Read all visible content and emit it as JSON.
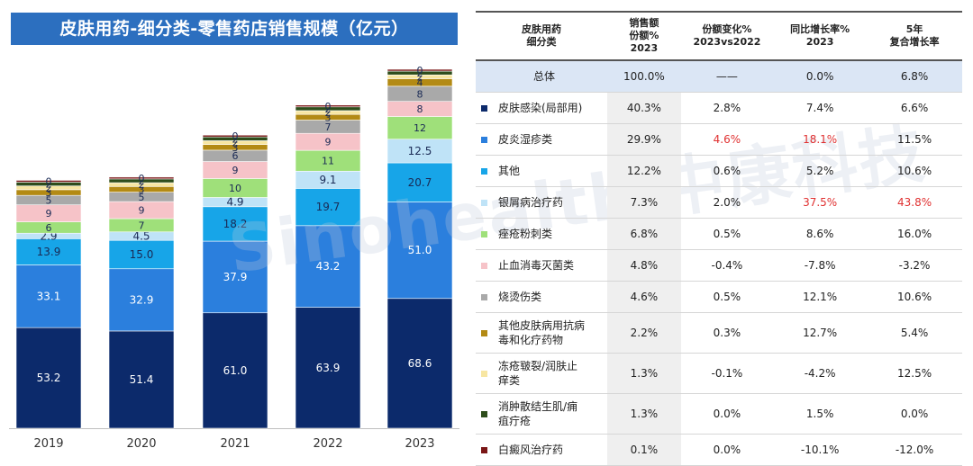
{
  "chart_data": {
    "type": "bar",
    "stacked": true,
    "title": "皮肤用药-细分类-零售药店销售规模（亿元）",
    "categories": [
      "2019",
      "2020",
      "2021",
      "2022",
      "2023"
    ],
    "series": [
      {
        "name": "皮肤感染(局部用)",
        "color": "#0c2a6b",
        "values": [
          53.2,
          51.4,
          61.0,
          63.9,
          68.6
        ],
        "text_color": "#ffffff"
      },
      {
        "name": "皮炎湿疹类",
        "color": "#2b7fdd",
        "values": [
          33.1,
          32.9,
          37.9,
          43.2,
          51.0
        ],
        "text_color": "#ffffff"
      },
      {
        "name": "其他",
        "color": "#17a5e8",
        "values": [
          13.9,
          15.0,
          18.2,
          19.7,
          20.7
        ],
        "text_color": "#1a2a55"
      },
      {
        "name": "银屑病治疗药",
        "color": "#bfe3f7",
        "values": [
          2.9,
          4.5,
          4.9,
          9.1,
          12.5
        ],
        "text_color": "#1a2a55"
      },
      {
        "name": "痤疮粉刺类",
        "color": "#9fe07a",
        "values": [
          6,
          7,
          10,
          11,
          12
        ],
        "text_color": "#1a2a55"
      },
      {
        "name": "止血消毒灭菌类",
        "color": "#f6c3c8",
        "values": [
          9,
          9,
          9,
          9,
          8
        ],
        "text_color": "#1a2a55"
      },
      {
        "name": "烧烫伤类",
        "color": "#a9a9a9",
        "values": [
          5,
          5,
          6,
          7,
          8
        ],
        "text_color": "#1a2a55"
      },
      {
        "name": "其他皮肤病用抗病毒和化疗药物",
        "color": "#b38a14",
        "values": [
          3,
          3,
          3,
          3,
          4
        ],
        "text_color": "#1a2a55"
      },
      {
        "name": "冻疮皲裂/润肤止痒类",
        "color": "#f7e6a2",
        "values": [
          2,
          2,
          2,
          2,
          2
        ],
        "text_color": "#1a2a55"
      },
      {
        "name": "消肿散结生肌/痈疽疔疮",
        "color": "#2e4d1b",
        "values": [
          2,
          2,
          2,
          2,
          2
        ],
        "text_color": "#1a2a55"
      },
      {
        "name": "白癜风治疗药",
        "color": "#7a1616",
        "values": [
          0.4,
          0.4,
          0.4,
          0.4,
          0.4
        ],
        "text_color": "#1a2a55"
      }
    ],
    "segment_labels": [
      [
        "53.2",
        "33.1",
        "13.9",
        "2.9",
        "6",
        "9",
        "5",
        "3",
        "2",
        "2",
        "0"
      ],
      [
        "51.4",
        "32.9",
        "15.0",
        "4.5",
        "7",
        "9",
        "5",
        "3",
        "2",
        "2",
        "0"
      ],
      [
        "61.0",
        "37.9",
        "18.2",
        "4.9",
        "10",
        "9",
        "6",
        "3",
        "2",
        "2",
        "0"
      ],
      [
        "63.9",
        "43.2",
        "19.7",
        "9.1",
        "11",
        "9",
        "7",
        "3",
        "2",
        "2",
        "0"
      ],
      [
        "68.6",
        "51.0",
        "20.7",
        "12.5",
        "12",
        "8",
        "8",
        "4",
        "2",
        "2",
        "0"
      ]
    ],
    "ylim": [
      0,
      195
    ],
    "xlabel": "",
    "ylabel": "",
    "grid": false
  },
  "watermark": "Sinohealth 中康科技",
  "table": {
    "headers": [
      "皮肤用药\n细分类",
      "销售额\n份额%\n2023",
      "份额变化%\n2023vs2022",
      "同比增长率%\n2023",
      "5年\n复合增长率"
    ],
    "rows": [
      {
        "cat": "总体",
        "share": "100.0%",
        "change": "——",
        "yoy": "0.0%",
        "cagr": "6.8%",
        "total": true
      },
      {
        "cat": "皮肤感染(局部用)",
        "color": "#0c2a6b",
        "share": "40.3%",
        "change": "2.8%",
        "yoy": "7.4%",
        "cagr": "6.6%"
      },
      {
        "cat": "皮炎湿疹类",
        "color": "#2b7fdd",
        "share": "29.9%",
        "change": "4.6%",
        "yoy": "18.1%",
        "cagr": "11.5%",
        "red": [
          "change",
          "yoy"
        ]
      },
      {
        "cat": "其他",
        "color": "#17a5e8",
        "share": "12.2%",
        "change": "0.6%",
        "yoy": "5.2%",
        "cagr": "10.6%"
      },
      {
        "cat": "银屑病治疗药",
        "color": "#bfe3f7",
        "share": "7.3%",
        "change": "2.0%",
        "yoy": "37.5%",
        "cagr": "43.8%",
        "red": [
          "yoy",
          "cagr"
        ]
      },
      {
        "cat": "痤疮粉刺类",
        "color": "#9fe07a",
        "share": "6.8%",
        "change": "0.5%",
        "yoy": "8.6%",
        "cagr": "16.0%"
      },
      {
        "cat": "止血消毒灭菌类",
        "color": "#f6c3c8",
        "share": "4.8%",
        "change": "-0.4%",
        "yoy": "-7.8%",
        "cagr": "-3.2%"
      },
      {
        "cat": "烧烫伤类",
        "color": "#a9a9a9",
        "share": "4.6%",
        "change": "0.5%",
        "yoy": "12.1%",
        "cagr": "10.6%"
      },
      {
        "cat": "其他皮肤病用抗病毒和化疗药物",
        "cat_lines": [
          "其他皮肤病用抗病",
          "毒和化疗药物"
        ],
        "color": "#b38a14",
        "share": "2.2%",
        "change": "0.3%",
        "yoy": "12.7%",
        "cagr": "5.4%"
      },
      {
        "cat": "冻疮皲裂/润肤止痒类",
        "cat_lines": [
          "冻疮皲裂/润肤止",
          "痒类"
        ],
        "color": "#f7e6a2",
        "share": "1.3%",
        "change": "-0.1%",
        "yoy": "-4.2%",
        "cagr": "12.5%"
      },
      {
        "cat": "消肿散结生肌/痈疽疔疮",
        "cat_lines": [
          "消肿散结生肌/痈",
          "疽疔疮"
        ],
        "color": "#2e4d1b",
        "share": "1.3%",
        "change": "0.0%",
        "yoy": "1.5%",
        "cagr": "0.0%"
      },
      {
        "cat": "白癜风治疗药",
        "color": "#7a1616",
        "share": "0.1%",
        "change": "0.0%",
        "yoy": "-10.1%",
        "cagr": "-12.0%"
      }
    ]
  }
}
